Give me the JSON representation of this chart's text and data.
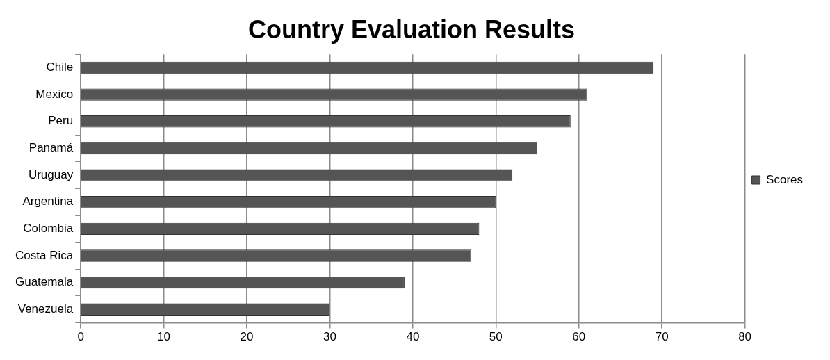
{
  "chart_data": {
    "type": "bar",
    "title": "Country Evaluation Results",
    "orientation": "horizontal",
    "categories": [
      "Chile",
      "Mexico",
      "Peru",
      "Panamá",
      "Uruguay",
      "Argentina",
      "Colombia",
      "Costa Rica",
      "Guatemala",
      "Venezuela"
    ],
    "series": [
      {
        "name": "Scores",
        "color": "#555555",
        "values": [
          69,
          61,
          59,
          55,
          52,
          50,
          48,
          47,
          39,
          30
        ]
      }
    ],
    "xlim": [
      0,
      80
    ],
    "xticks": [
      0,
      10,
      20,
      30,
      40,
      50,
      60,
      70,
      80
    ],
    "grid": "x",
    "legend": "right"
  }
}
